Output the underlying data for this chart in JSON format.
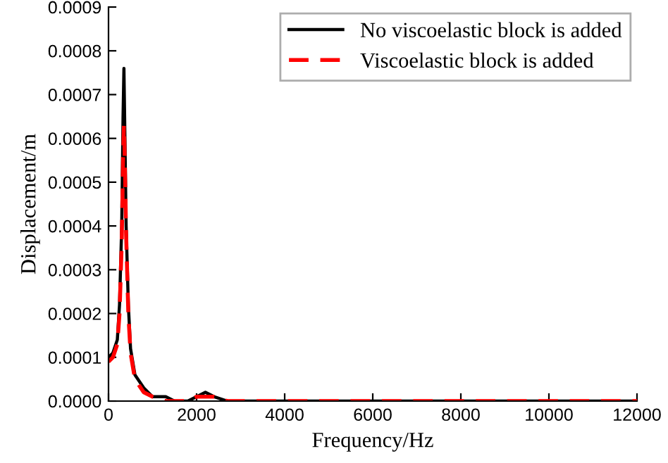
{
  "chart_data": {
    "type": "line",
    "xlabel": "Frequency/Hz",
    "ylabel": "Displacement/m",
    "xlim": [
      0,
      12000
    ],
    "xticks": [
      0,
      2000,
      4000,
      6000,
      8000,
      10000,
      12000
    ],
    "ylim": [
      0,
      0.0009
    ],
    "yticks": [
      {
        "value": 0,
        "label": "0.0000"
      },
      {
        "value": 0.0001,
        "label": "0.0001"
      },
      {
        "value": 0.0002,
        "label": "0.0002"
      },
      {
        "value": 0.0003,
        "label": "0.0003"
      },
      {
        "value": 0.0004,
        "label": "0.0004"
      },
      {
        "value": 0.0005,
        "label": "0.0005"
      },
      {
        "value": 0.0006,
        "label": "0.0006"
      },
      {
        "value": 0.0007,
        "label": "0.0007"
      },
      {
        "value": 0.0008,
        "label": "0.0008"
      },
      {
        "value": 0.0009,
        "label": "0.0009"
      }
    ],
    "legend": "top right",
    "grid": false,
    "series": [
      {
        "name": "No viscoelastic block is added",
        "color": "#000000",
        "line_style": "solid",
        "x": [
          0,
          100,
          200,
          250,
          300,
          330,
          350,
          370,
          400,
          450,
          500,
          600,
          800,
          1000,
          1300,
          1500,
          1800,
          2000,
          2200,
          2400,
          2700,
          3000,
          4000,
          6000,
          8000,
          10000,
          12000
        ],
        "values": [
          0.0001,
          0.00011,
          0.00014,
          0.00022,
          0.0004,
          0.00065,
          0.00076,
          0.00062,
          0.0004,
          0.00022,
          0.00012,
          6e-05,
          3e-05,
          1e-05,
          1e-05,
          0,
          0,
          1e-05,
          2e-05,
          1e-05,
          0,
          0,
          0,
          0,
          0,
          0,
          0
        ]
      },
      {
        "name": "Viscoelastic block is added",
        "color": "#ff0000",
        "line_style": "dashed",
        "x": [
          0,
          100,
          200,
          250,
          300,
          330,
          350,
          370,
          400,
          450,
          500,
          600,
          800,
          1000,
          1300,
          1500,
          1800,
          2000,
          2150,
          2400,
          2700,
          3000,
          4000,
          6000,
          8000,
          10000,
          12000
        ],
        "values": [
          9e-05,
          0.0001,
          0.00013,
          0.0002,
          0.00036,
          0.00055,
          0.00063,
          0.00055,
          0.00038,
          0.0002,
          0.00011,
          5e-05,
          2e-05,
          1e-05,
          0,
          0,
          0,
          1e-05,
          1e-05,
          1e-05,
          0,
          0,
          0,
          0,
          0,
          0,
          0
        ]
      }
    ]
  }
}
